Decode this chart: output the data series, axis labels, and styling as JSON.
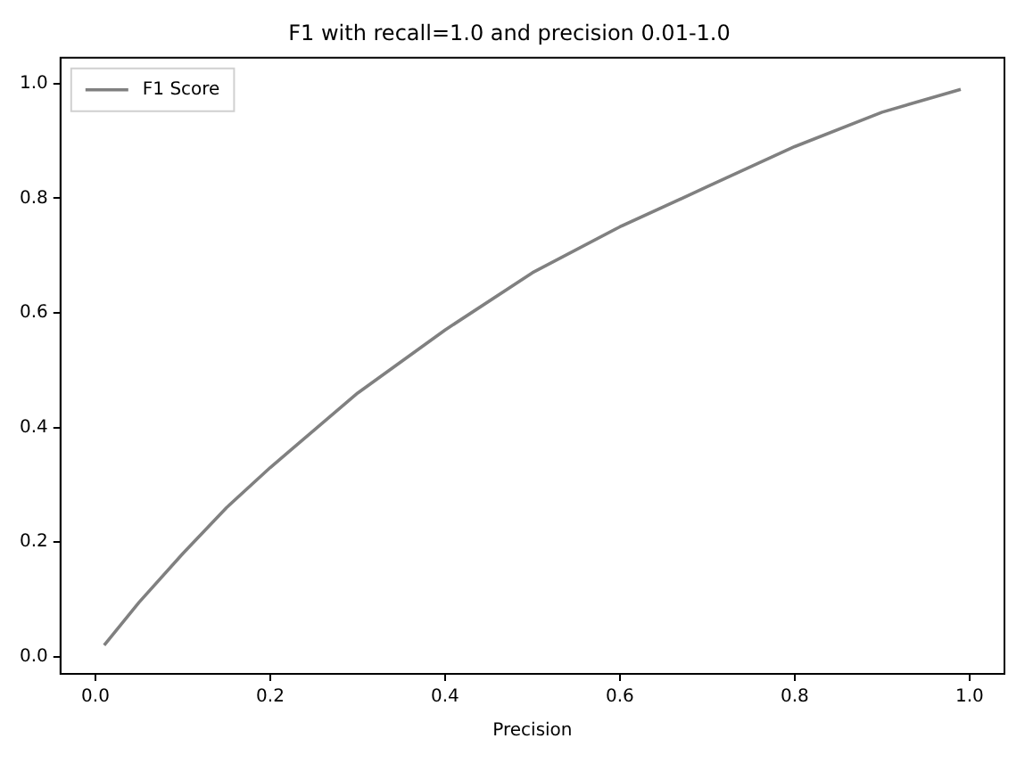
{
  "chart_data": {
    "type": "line",
    "title": "F1 with recall=1.0 and precision 0.01-1.0",
    "xlabel": "Precision",
    "x": [
      0.01,
      0.05,
      0.1,
      0.15,
      0.2,
      0.3,
      0.4,
      0.5,
      0.6,
      0.7,
      0.8,
      0.9,
      0.99
    ],
    "series": [
      {
        "name": "F1 Score",
        "color": "#808080",
        "values": [
          0.02,
          0.095,
          0.18,
          0.26,
          0.33,
          0.46,
          0.57,
          0.67,
          0.75,
          0.82,
          0.89,
          0.95,
          0.99
        ]
      }
    ],
    "xlim": [
      -0.04,
      1.04
    ],
    "ylim": [
      -0.03,
      1.045
    ],
    "xticks": [
      {
        "value": 0,
        "label": "0.0"
      },
      {
        "value": 0.2,
        "label": "0.2"
      },
      {
        "value": 0.4,
        "label": "0.4"
      },
      {
        "value": 0.6,
        "label": "0.6"
      },
      {
        "value": 0.8,
        "label": "0.8"
      },
      {
        "value": 1,
        "label": "1.0"
      }
    ],
    "yticks": [
      {
        "value": 0,
        "label": "0.0"
      },
      {
        "value": 0.2,
        "label": "0.2"
      },
      {
        "value": 0.4,
        "label": "0.4"
      },
      {
        "value": 0.6,
        "label": "0.6"
      },
      {
        "value": 0.8,
        "label": "0.8"
      },
      {
        "value": 1,
        "label": "1.0"
      }
    ],
    "grid": false,
    "legend": "top left",
    "marker": "none",
    "line_style": "solid"
  }
}
